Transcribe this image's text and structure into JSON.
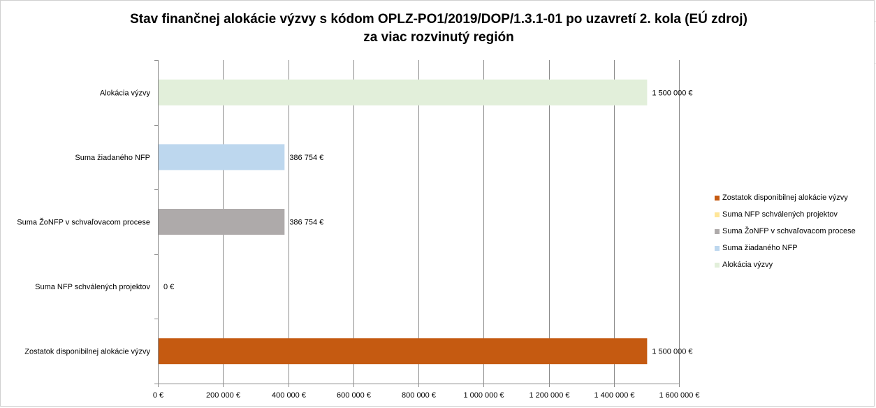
{
  "chart_data": {
    "type": "bar",
    "orientation": "horizontal",
    "title_lines": [
      "Stav finančnej alokácie výzvy s kódom OPLZ-PO1/2019/DOP/1.3.1-01 po uzavretí 2. kola (EÚ zdroj)",
      "za viac rozvinutý región"
    ],
    "categories": [
      "Alokácia výzvy",
      "Suma žiadaného NFP",
      "Suma ŽoNFP v schvaľovacom procese",
      "Suma NFP schválených projektov",
      "Zostatok disponibilnej alokácie výzvy"
    ],
    "values": [
      1500000,
      386754,
      386754,
      0,
      1500000
    ],
    "data_labels": [
      "1 500 000 €",
      "386 754 €",
      "386 754 €",
      "0 €",
      "1 500 000 €"
    ],
    "colors": [
      "#e2efda",
      "#bdd7ee",
      "#aeaaaa",
      "#ffe699",
      "#c55a11"
    ],
    "xlim": [
      0,
      1600000
    ],
    "xticks": [
      0,
      200000,
      400000,
      600000,
      800000,
      1000000,
      1200000,
      1400000,
      1600000
    ],
    "xtick_labels": [
      "0 €",
      "200 000 €",
      "400 000 €",
      "600 000 €",
      "800 000 €",
      "1 000 000 €",
      "1 200 000 €",
      "1 400 000 €",
      "1 600 000 €"
    ],
    "grid": true,
    "legend_position": "right",
    "legend": [
      {
        "label": "Zostatok disponibilnej alokácie výzvy",
        "color": "#c55a11"
      },
      {
        "label": "Suma NFP schválených projektov",
        "color": "#ffe699"
      },
      {
        "label": "Suma ŽoNFP v schvaľovacom procese",
        "color": "#aeaaaa"
      },
      {
        "label": "Suma žiadaného NFP",
        "color": "#bdd7ee"
      },
      {
        "label": "Alokácia výzvy",
        "color": "#e2efda"
      }
    ]
  }
}
